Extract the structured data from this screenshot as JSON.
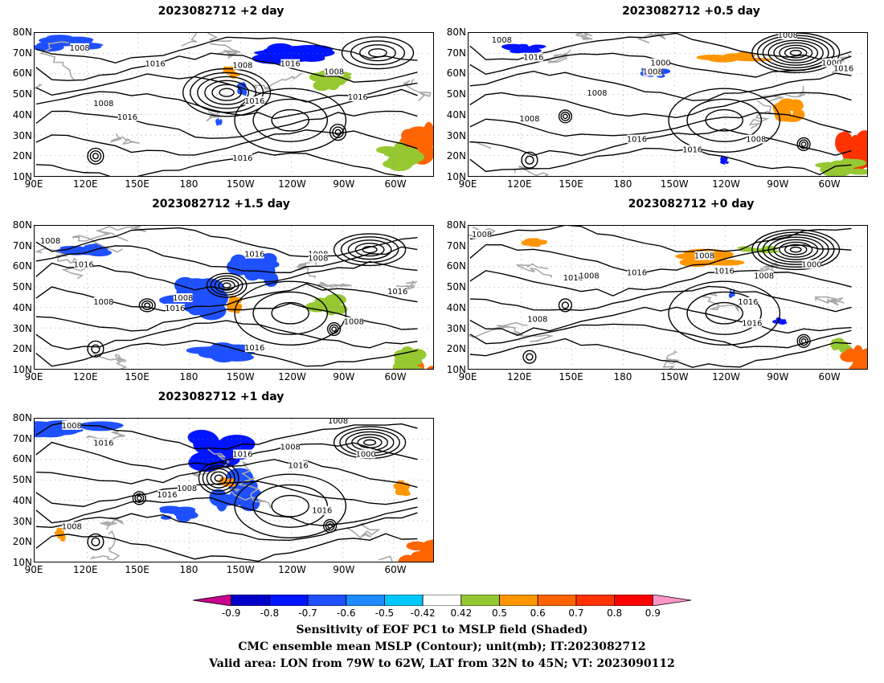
{
  "panels": [
    {
      "title": "2023082712 +2 day"
    },
    {
      "title": "2023082712 +0.5 day"
    },
    {
      "title": "2023082712 +1.5 day"
    },
    {
      "title": "2023082712 +0 day"
    },
    {
      "title": "2023082712 +1 day"
    }
  ],
  "axes": {
    "lat_labels": [
      "80N",
      "70N",
      "60N",
      "50N",
      "40N",
      "30N",
      "20N",
      "10N"
    ],
    "lon_labels": [
      "90E",
      "120E",
      "150E",
      "180",
      "150W",
      "120W",
      "90W",
      "60W"
    ]
  },
  "contour_labels": [
    "1008",
    "1016",
    "1000"
  ],
  "colorbar": {
    "labels": [
      "-0.9",
      "-0.8",
      "-0.7",
      "-0.6",
      "-0.5",
      "-0.42",
      "0.42",
      "0.5",
      "0.6",
      "0.7",
      "0.8",
      "0.9"
    ],
    "colors": [
      "#c8008c",
      "#0000c8",
      "#0014ff",
      "#1e50ff",
      "#1e8cff",
      "#00c8ff",
      "#ffffff",
      "#96c832",
      "#ff9600",
      "#ff6400",
      "#ff3200",
      "#ff0000",
      "#ff96c8"
    ]
  },
  "caption": {
    "line1": "Sensitivity of EOF PC1 to MSLP field (Shaded)",
    "line2": "CMC ensemble mean MSLP (Contour); unit(mb); IT:2023082712",
    "line3": "Valid area: LON from 79W to 62W, LAT from 32N to 45N; VT: 2023090112"
  }
}
